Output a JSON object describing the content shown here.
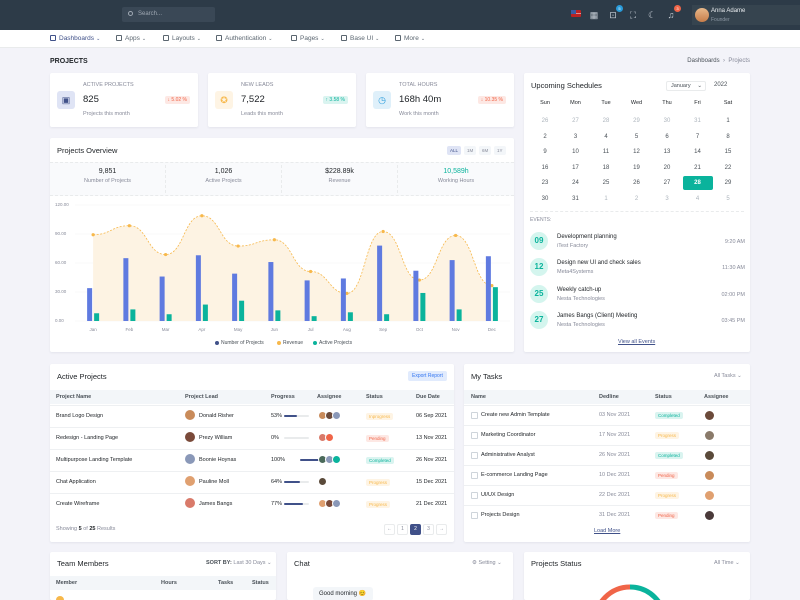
{
  "topbar": {
    "search_placeholder": "Search...",
    "cart_badge": "5",
    "notif_badge": "3",
    "user_name": "Anna Adame",
    "user_role": "Founder"
  },
  "menu": [
    "Dashboards",
    "Apps",
    "Layouts",
    "Authentication",
    "Pages",
    "Base UI",
    "More"
  ],
  "page": {
    "title": "PROJECTS",
    "breadcrumb_parent": "Dashboards",
    "breadcrumb_current": "Projects"
  },
  "stats": [
    {
      "label": "ACTIVE PROJECTS",
      "value": "825",
      "change": "5.02 %",
      "trend": "down",
      "sub": "Projects this month",
      "icon": "briefcase-icon"
    },
    {
      "label": "NEW LEADS",
      "value": "7,522",
      "change": "3.58 %",
      "trend": "up",
      "sub": "Leads this month",
      "icon": "award-icon"
    },
    {
      "label": "TOTAL HOURS",
      "value": "168h 40m",
      "change": "10.35 %",
      "trend": "down",
      "sub": "Work this month",
      "icon": "clock-icon"
    }
  ],
  "overview": {
    "title": "Projects Overview",
    "filters": [
      "ALL",
      "1M",
      "6M",
      "1Y"
    ],
    "metrics": [
      {
        "value": "9,851",
        "label": "Number of Projects"
      },
      {
        "value": "1,026",
        "label": "Active Projects"
      },
      {
        "value": "$228.89k",
        "label": "Revenue"
      },
      {
        "value": "10,589h",
        "label": "Working Hours"
      }
    ]
  },
  "chart_data": {
    "type": "bar",
    "categories": [
      "Jan",
      "Feb",
      "Mar",
      "Apr",
      "May",
      "Jun",
      "Jul",
      "Aug",
      "Sep",
      "Oct",
      "Nov",
      "Dec"
    ],
    "yticks": [
      "0.00",
      "30.00",
      "60.00",
      "90.00",
      "120.00"
    ],
    "ylim": [
      0,
      120
    ],
    "series": [
      {
        "name": "Number of Projects",
        "type": "bar",
        "color": "#405189",
        "values": [
          34,
          65,
          46,
          68,
          49,
          61,
          42,
          44,
          78,
          52,
          63,
          67
        ]
      },
      {
        "name": "Revenue",
        "type": "area",
        "color": "#f7b84b",
        "values": [
          89.25,
          98.58,
          68.74,
          108.87,
          77.54,
          84.03,
          51.24,
          28.57,
          92.57,
          42.36,
          88.51,
          36.57
        ]
      },
      {
        "name": "Active Projects",
        "type": "bar",
        "color": "#0ab39c",
        "values": [
          8,
          12,
          7,
          17,
          21,
          11,
          5,
          9,
          7,
          29,
          12,
          35
        ]
      }
    ]
  },
  "calendar": {
    "title": "Upcoming Schedules",
    "month": "January",
    "year": "2022",
    "days": [
      "Sun",
      "Mon",
      "Tue",
      "Wed",
      "Thu",
      "Fri",
      "Sat"
    ],
    "weeks": [
      [
        "26",
        "27",
        "28",
        "29",
        "30",
        "31",
        "1"
      ],
      [
        "2",
        "3",
        "4",
        "5",
        "6",
        "7",
        "8"
      ],
      [
        "9",
        "10",
        "11",
        "12",
        "13",
        "14",
        "15"
      ],
      [
        "16",
        "17",
        "18",
        "19",
        "20",
        "21",
        "22"
      ],
      [
        "23",
        "24",
        "25",
        "26",
        "27",
        "28",
        "29"
      ],
      [
        "30",
        "31",
        "1",
        "2",
        "3",
        "4",
        "5"
      ]
    ],
    "selected": "28",
    "events_label": "EVENTS:",
    "events": [
      {
        "day": "09",
        "title": "Development planning",
        "sub": "iTest Factory",
        "time": "9:20 AM"
      },
      {
        "day": "12",
        "title": "Design new UI and check sales",
        "sub": "Meta4Systems",
        "time": "11:30 AM"
      },
      {
        "day": "25",
        "title": "Weekly catch-up",
        "sub": "Nesta Technologies",
        "time": "02:00 PM"
      },
      {
        "day": "27",
        "title": "James Bangs (Client) Meeting",
        "sub": "Nesta Technologies",
        "time": "03:45 PM"
      }
    ],
    "view_all": "View all Events"
  },
  "active_projects": {
    "title": "Active Projects",
    "export": "Export Report",
    "columns": [
      "Project Name",
      "Project Lead",
      "Progress",
      "Assignee",
      "Status",
      "Due Date"
    ],
    "rows": [
      {
        "name": "Brand Logo Design",
        "lead": "Donald Risher",
        "progress": "53%",
        "pct": 53,
        "status": "Inprogress",
        "due": "06 Sep 2021"
      },
      {
        "name": "Redesign - Landing Page",
        "lead": "Prezy William",
        "progress": "0%",
        "pct": 0,
        "status": "Pending",
        "due": "13 Nov 2021"
      },
      {
        "name": "Multipurpose Landing Template",
        "lead": "Boonie Hoynas",
        "progress": "100%",
        "pct": 100,
        "status": "Completed",
        "due": "26 Nov 2021"
      },
      {
        "name": "Chat Application",
        "lead": "Pauline Moll",
        "progress": "64%",
        "pct": 64,
        "status": "Progress",
        "due": "15 Dec 2021"
      },
      {
        "name": "Create Wireframe",
        "lead": "James Bangs",
        "progress": "77%",
        "pct": 77,
        "status": "Progress",
        "due": "21 Dec 2021"
      }
    ],
    "showing_prefix": "Showing",
    "showing_count": "5",
    "showing_of": "of",
    "showing_total": "25",
    "showing_suffix": "Results",
    "pages": [
      "←",
      "1",
      "2",
      "3",
      "→"
    ]
  },
  "tasks": {
    "title": "My Tasks",
    "filter": "All Tasks",
    "columns": [
      "Name",
      "Dedline",
      "Status",
      "Assignee"
    ],
    "rows": [
      {
        "name": "Create new Admin Template",
        "date": "03 Nov 2021",
        "status": "Completed"
      },
      {
        "name": "Marketing Coordinator",
        "date": "17 Nov 2021",
        "status": "Progress"
      },
      {
        "name": "Administrative Analyst",
        "date": "26 Nov 2021",
        "status": "Completed"
      },
      {
        "name": "E-commerce Landing Page",
        "date": "10 Dec 2021",
        "status": "Pending"
      },
      {
        "name": "UI/UX Design",
        "date": "22 Dec 2021",
        "status": "Progress"
      },
      {
        "name": "Projects Design",
        "date": "31 Dec 2021",
        "status": "Pending"
      }
    ],
    "load_more": "Load More"
  },
  "team": {
    "title": "Team Members",
    "sort_label": "SORT BY:",
    "sort_value": "Last 30 Days",
    "columns": [
      "Member",
      "Hours",
      "Tasks",
      "Status"
    ]
  },
  "chat": {
    "title": "Chat",
    "setting": "Setting",
    "message": "Good morning 😊"
  },
  "projects_status": {
    "title": "Projects Status",
    "filter": "All Time"
  }
}
